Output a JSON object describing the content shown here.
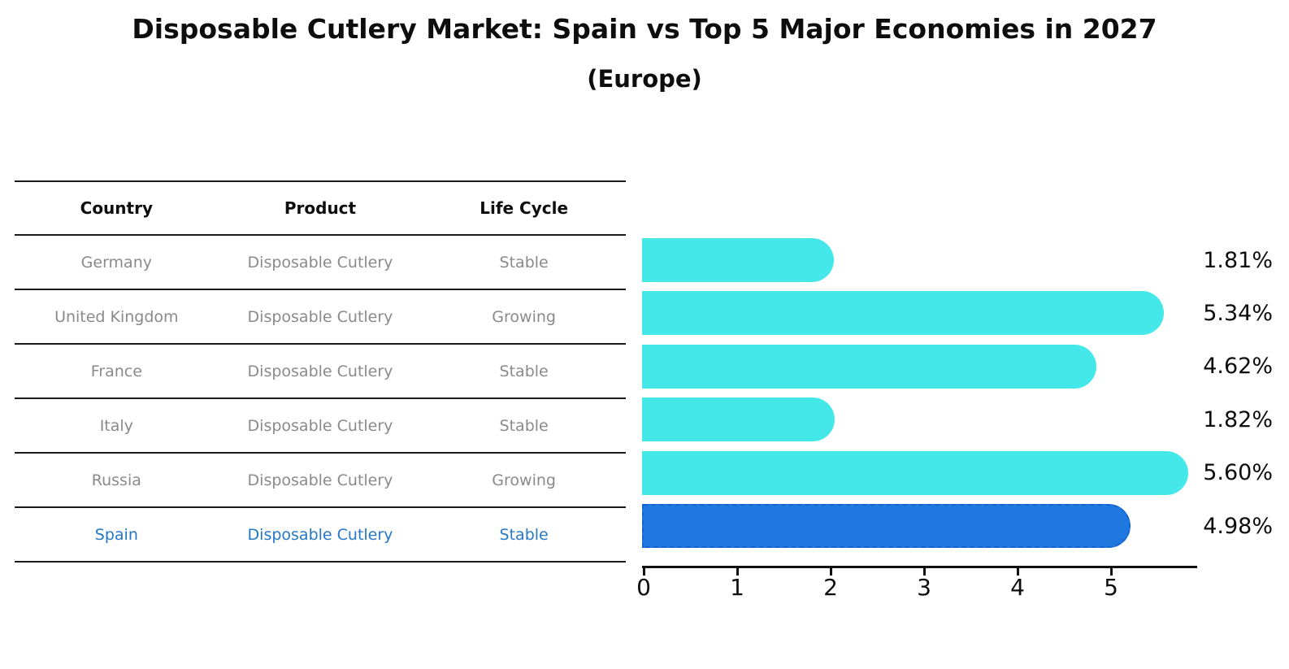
{
  "title": "Disposable Cutlery Market: Spain vs Top 5 Major Economies in 2027",
  "subtitle": "(Europe)",
  "table": {
    "headers": [
      "Country",
      "Product",
      "Life Cycle"
    ],
    "rows": [
      {
        "country": "Germany",
        "product": "Disposable Cutlery",
        "life_cycle": "Stable",
        "highlighted": false
      },
      {
        "country": "United Kingdom",
        "product": "Disposable Cutlery",
        "life_cycle": "Growing",
        "highlighted": false
      },
      {
        "country": "France",
        "product": "Disposable Cutlery",
        "life_cycle": "Stable",
        "highlighted": false
      },
      {
        "country": "Italy",
        "product": "Disposable Cutlery",
        "life_cycle": "Stable",
        "highlighted": false
      },
      {
        "country": "Russia",
        "product": "Disposable Cutlery",
        "life_cycle": "Growing",
        "highlighted": false
      },
      {
        "country": "Spain",
        "product": "Disposable Cutlery",
        "life_cycle": "Stable",
        "highlighted": true
      }
    ]
  },
  "chart_data": {
    "type": "bar",
    "orientation": "horizontal",
    "title": "Disposable Cutlery Market: Spain vs Top 5 Major Economies in 2027",
    "subtitle": "(Europe)",
    "categories": [
      "Germany",
      "United Kingdom",
      "France",
      "Italy",
      "Russia",
      "Spain"
    ],
    "values": [
      1.81,
      5.34,
      4.62,
      1.82,
      5.6,
      4.98
    ],
    "value_labels": [
      "1.81%",
      "5.34%",
      "4.62%",
      "1.82%",
      "5.60%",
      "4.98%"
    ],
    "unit": "%",
    "xticks": [
      "0",
      "1",
      "2",
      "3",
      "4",
      "5"
    ],
    "xlim": [
      0,
      5.93
    ],
    "grid": false,
    "legend": false,
    "bar_color": "#45e8e8",
    "highlight_category": "Spain",
    "highlight_color": "#1e78e0",
    "highlight_border_color": "#1463cf"
  },
  "colors": {
    "background": "#ffffff",
    "header_text": "#0d0d0d",
    "row_text": "#8a8a8a",
    "highlight_text": "#2577c8",
    "axis": "#111111"
  }
}
